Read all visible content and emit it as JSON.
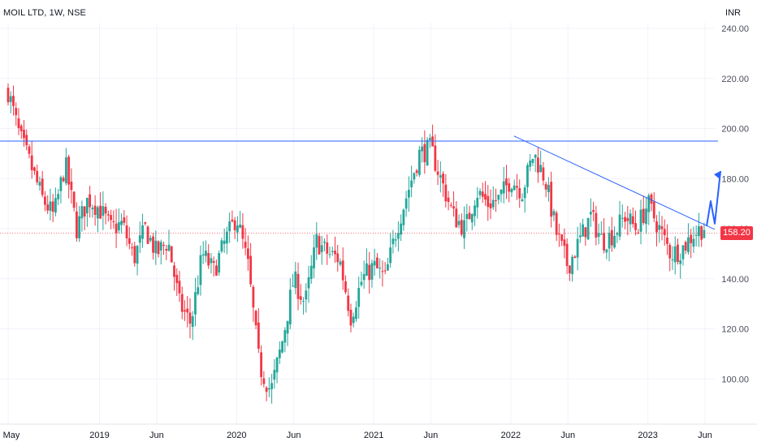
{
  "header": {
    "title": "MOIL LTD, 1W, NSE",
    "currency": "INR",
    "last_price": "158.20"
  },
  "colors": {
    "up": "#26a69a",
    "down": "#f23645",
    "support_line": "#2962ff",
    "trend_line": "#2962ff",
    "arrow": "#2962ff",
    "price_tag": "#f23645",
    "grid": "#f0f3fa"
  },
  "chart_data": {
    "type": "candlestick",
    "symbol": "MOIL LTD",
    "interval": "1W",
    "exchange": "NSE",
    "ylim": [
      85,
      245
    ],
    "y_ticks": [
      "240.00",
      "220.00",
      "200.00",
      "180.00",
      "160.00",
      "140.00",
      "120.00",
      "100.00"
    ],
    "x_ticks": [
      "May",
      "2019",
      "Jun",
      "2020",
      "Jun",
      "2021",
      "Jun",
      "2022",
      "Jun",
      "2023",
      "Jun"
    ],
    "x_tick_dates": [
      "2018-05",
      "2019-01",
      "2019-06",
      "2020-01",
      "2020-06",
      "2021-01",
      "2021-06",
      "2022-01",
      "2022-06",
      "2023-01",
      "2023-06"
    ],
    "grid": true,
    "last_price": 158.2,
    "close_path": [
      [
        "2018-05",
        215
      ],
      [
        "2018-06",
        197
      ],
      [
        "2018-07",
        185
      ],
      [
        "2018-08",
        172
      ],
      [
        "2018-09",
        165
      ],
      [
        "2018-10",
        186
      ],
      [
        "2018-11",
        160
      ],
      [
        "2018-12",
        172
      ],
      [
        "2019-01",
        168
      ],
      [
        "2019-02",
        160
      ],
      [
        "2019-03",
        162
      ],
      [
        "2019-04",
        148
      ],
      [
        "2019-05",
        160
      ],
      [
        "2019-06",
        150
      ],
      [
        "2019-07",
        155
      ],
      [
        "2019-08",
        130
      ],
      [
        "2019-09",
        122
      ],
      [
        "2019-10",
        150
      ],
      [
        "2019-11",
        143
      ],
      [
        "2019-12",
        155
      ],
      [
        "2020-01",
        165
      ],
      [
        "2020-02",
        145
      ],
      [
        "2020-03",
        105
      ],
      [
        "2020-04",
        95
      ],
      [
        "2020-05",
        115
      ],
      [
        "2020-06",
        140
      ],
      [
        "2020-07",
        130
      ],
      [
        "2020-08",
        155
      ],
      [
        "2020-09",
        150
      ],
      [
        "2020-10",
        148
      ],
      [
        "2020-11",
        125
      ],
      [
        "2020-12",
        140
      ],
      [
        "2021-01",
        145
      ],
      [
        "2021-02",
        140
      ],
      [
        "2021-03",
        160
      ],
      [
        "2021-04",
        175
      ],
      [
        "2021-05",
        190
      ],
      [
        "2021-06",
        192
      ],
      [
        "2021-07",
        178
      ],
      [
        "2021-08",
        165
      ],
      [
        "2021-09",
        160
      ],
      [
        "2021-10",
        175
      ],
      [
        "2021-11",
        170
      ],
      [
        "2021-12",
        172
      ],
      [
        "2022-01",
        180
      ],
      [
        "2022-02",
        175
      ],
      [
        "2022-03",
        190
      ],
      [
        "2022-04",
        180
      ],
      [
        "2022-05",
        158
      ],
      [
        "2022-06",
        145
      ],
      [
        "2022-07",
        155
      ],
      [
        "2022-08",
        165
      ],
      [
        "2022-09",
        155
      ],
      [
        "2022-10",
        158
      ],
      [
        "2022-11",
        165
      ],
      [
        "2022-12",
        160
      ],
      [
        "2023-01",
        170
      ],
      [
        "2023-02",
        160
      ],
      [
        "2023-03",
        150
      ],
      [
        "2023-04",
        152
      ],
      [
        "2023-05",
        158
      ],
      [
        "2023-06",
        161
      ]
    ],
    "annotations": {
      "horizontal_resistance": 195,
      "trendline": [
        [
          "2022-01",
          197
        ],
        [
          "2023-06",
          161
        ]
      ],
      "projection_arrow": [
        [
          "2023-06",
          161
        ],
        [
          "2023-06",
          171
        ],
        [
          "2023-06",
          162
        ],
        [
          "2023-07",
          183
        ]
      ]
    }
  }
}
